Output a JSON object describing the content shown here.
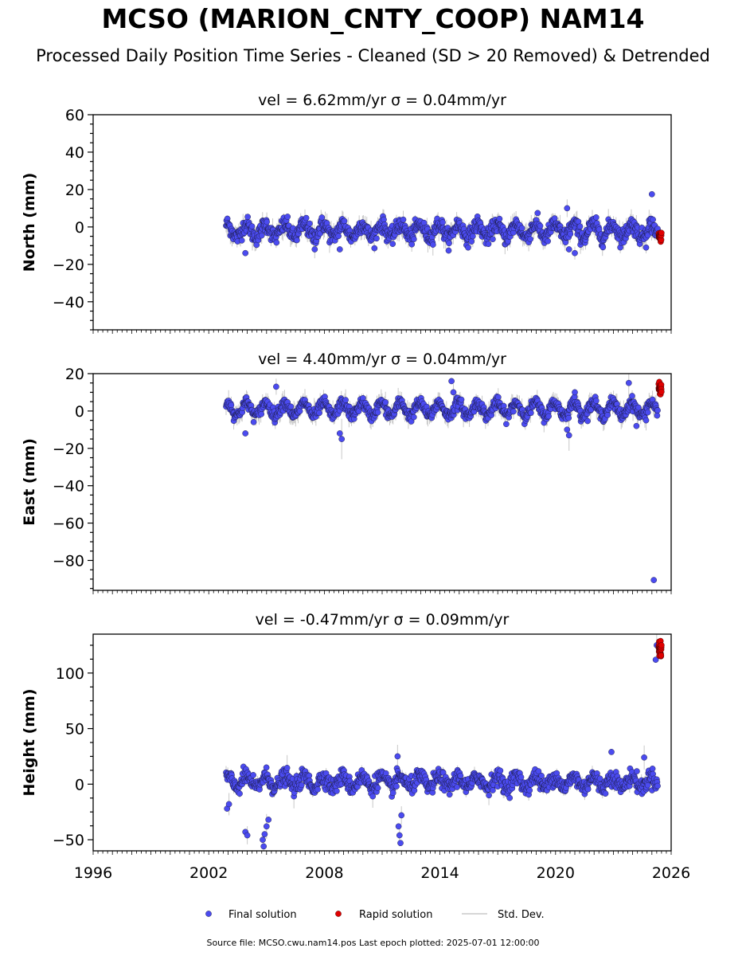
{
  "title": "MCSO (MARION_CNTY_COOP) NAM14",
  "subtitle": "Processed Daily Position Time Series - Cleaned (SD > 20 Removed) & Detrended",
  "footer": "Source file: MCSO.cwu.nam14.pos  Last epoch plotted: 2025-07-01 12:00:00",
  "colors": {
    "final": "#4b4bf0",
    "rapid": "#e00000",
    "stddev": "#c8c8c8"
  },
  "legend": {
    "final_label": "Final solution",
    "rapid_label": "Rapid solution",
    "std_label": "Std. Dev."
  },
  "chart_data": [
    {
      "type": "scatter",
      "title": "vel = 6.62mm/yr   σ = 0.04mm/yr",
      "xlabel": "",
      "ylabel": "North (mm)",
      "xlim": [
        1996,
        2026
      ],
      "ylim": [
        -55,
        60
      ],
      "yticks": [
        -40,
        -20,
        0,
        20,
        40,
        60
      ],
      "ytick_labels": [
        "−40",
        "−20",
        "0",
        "20",
        "40",
        "60"
      ],
      "series": [
        {
          "name": "Final solution",
          "x_start": 2002.9,
          "x_end": 2025.3,
          "level": -2,
          "scatter_sd": 3.5,
          "seasonal_amp": 3.5,
          "outliers": [
            [
              2003.9,
              -14
            ],
            [
              2007.5,
              -12
            ],
            [
              2008.8,
              -12
            ],
            [
              2020.6,
              10
            ],
            [
              2020.7,
              -12
            ],
            [
              2021.0,
              -14
            ],
            [
              2025.0,
              17.5
            ],
            [
              2024.7,
              -11
            ]
          ]
        },
        {
          "name": "Rapid solution",
          "x_start": 2025.35,
          "x_end": 2025.5,
          "level": -5,
          "scatter_sd": 1.2
        }
      ]
    },
    {
      "type": "scatter",
      "title": "vel = 4.40mm/yr   σ = 0.04mm/yr",
      "xlabel": "",
      "ylabel": "East (mm)",
      "xlim": [
        1996,
        2026
      ],
      "ylim": [
        -96,
        20
      ],
      "yticks": [
        -80,
        -60,
        -40,
        -20,
        0,
        20
      ],
      "ytick_labels": [
        "−80",
        "−60",
        "−40",
        "−20",
        "0",
        "20"
      ],
      "series": [
        {
          "name": "Final solution",
          "x_start": 2002.9,
          "x_end": 2025.3,
          "level": 1,
          "scatter_sd": 2.5,
          "seasonal_amp": 3.5,
          "outliers": [
            [
              2003.9,
              -12
            ],
            [
              2005.5,
              13
            ],
            [
              2008.8,
              -12
            ],
            [
              2008.9,
              -15
            ],
            [
              2014.6,
              16
            ],
            [
              2014.7,
              10
            ],
            [
              2020.6,
              -10
            ],
            [
              2020.7,
              -13
            ],
            [
              2021.0,
              10
            ],
            [
              2023.8,
              15
            ],
            [
              2024.2,
              -8
            ],
            [
              2024.7,
              -5
            ],
            [
              2025.1,
              -90.5
            ]
          ]
        },
        {
          "name": "Rapid solution",
          "x_start": 2025.35,
          "x_end": 2025.5,
          "level": 12,
          "scatter_sd": 1.3
        }
      ]
    },
    {
      "type": "scatter",
      "title": "vel = -0.47mm/yr   σ = 0.09mm/yr",
      "xlabel": "",
      "ylabel": "Height (mm)",
      "xlim": [
        1996,
        2026
      ],
      "ylim": [
        -60,
        135
      ],
      "yticks": [
        -50,
        0,
        50,
        100
      ],
      "ytick_labels": [
        "−50",
        "0",
        "50",
        "100"
      ],
      "xticks": [
        1996,
        2002,
        2008,
        2014,
        2020,
        2026
      ],
      "xtick_labels": [
        "1996",
        "2002",
        "2008",
        "2014",
        "2020",
        "2026"
      ],
      "series": [
        {
          "name": "Final solution",
          "x_start": 2002.9,
          "x_end": 2025.3,
          "level": 2,
          "scatter_sd": 6,
          "seasonal_amp": 5,
          "outliers": [
            [
              2002.95,
              -22
            ],
            [
              2003.05,
              -18
            ],
            [
              2003.9,
              -43
            ],
            [
              2004.0,
              -46
            ],
            [
              2004.8,
              -50
            ],
            [
              2004.85,
              -56
            ],
            [
              2004.9,
              -45
            ],
            [
              2005.0,
              -38
            ],
            [
              2005.1,
              -32
            ],
            [
              2011.8,
              25
            ],
            [
              2011.85,
              -38
            ],
            [
              2011.9,
              -46
            ],
            [
              2011.95,
              -53
            ],
            [
              2012.0,
              -28
            ],
            [
              2022.9,
              29
            ],
            [
              2024.6,
              24
            ],
            [
              2025.2,
              112
            ],
            [
              2025.25,
              125
            ]
          ]
        },
        {
          "name": "Rapid solution",
          "x_start": 2025.35,
          "x_end": 2025.5,
          "level": 122,
          "scatter_sd": 4
        }
      ]
    }
  ]
}
